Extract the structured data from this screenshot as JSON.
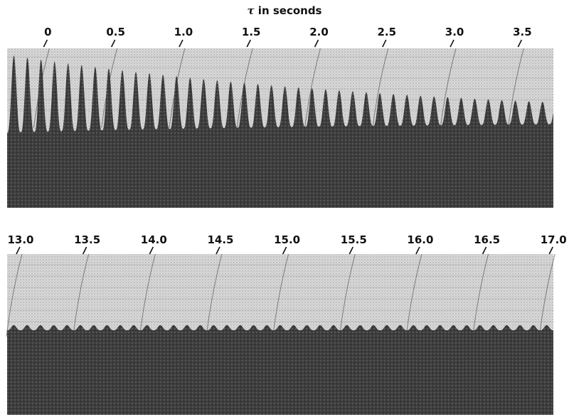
{
  "chart_data": [
    {
      "type": "strip-chart-record",
      "xlabel_symbol": "τ",
      "xlabel_text": " in seconds",
      "x_ticks": [
        {
          "value": 0,
          "label": "0"
        },
        {
          "value": 0.5,
          "label": "0.5"
        },
        {
          "value": 1.0,
          "label": "1.0"
        },
        {
          "value": 1.5,
          "label": "1.5"
        },
        {
          "value": 2.0,
          "label": "2.0"
        },
        {
          "value": 2.5,
          "label": "2.5"
        },
        {
          "value": 3.0,
          "label": "3.0"
        },
        {
          "value": 3.5,
          "label": "3.5"
        }
      ],
      "xlim": [
        -0.28,
        3.75
      ],
      "oscillation": {
        "period_s": 0.1,
        "start_s": -0.28,
        "initial_amplitude": 1.0,
        "final_amplitude": 0.28,
        "decay": "damped"
      },
      "colors": {
        "paper": "#dcdcdc",
        "trace": "#3a3a3a",
        "grid": "#8a8a8a",
        "ink": "#111111"
      }
    },
    {
      "type": "strip-chart-record",
      "x_ticks": [
        {
          "value": 13.0,
          "label": "13.0"
        },
        {
          "value": 13.5,
          "label": "13.5"
        },
        {
          "value": 14.0,
          "label": "14.0"
        },
        {
          "value": 14.5,
          "label": "14.5"
        },
        {
          "value": 15.0,
          "label": "15.0"
        },
        {
          "value": 15.5,
          "label": "15.5"
        },
        {
          "value": 16.0,
          "label": "16.0"
        },
        {
          "value": 16.5,
          "label": "16.5"
        },
        {
          "value": 17.0,
          "label": "17.0"
        }
      ],
      "xlim": [
        12.92,
        17.02
      ],
      "oscillation": {
        "period_s": 0.1,
        "start_s": 12.92,
        "initial_amplitude": 0.12,
        "final_amplitude": 0.12,
        "decay": "none"
      },
      "colors": {
        "paper": "#dcdcdc",
        "trace": "#3a3a3a",
        "grid": "#8a8a8a",
        "ink": "#111111"
      }
    }
  ]
}
